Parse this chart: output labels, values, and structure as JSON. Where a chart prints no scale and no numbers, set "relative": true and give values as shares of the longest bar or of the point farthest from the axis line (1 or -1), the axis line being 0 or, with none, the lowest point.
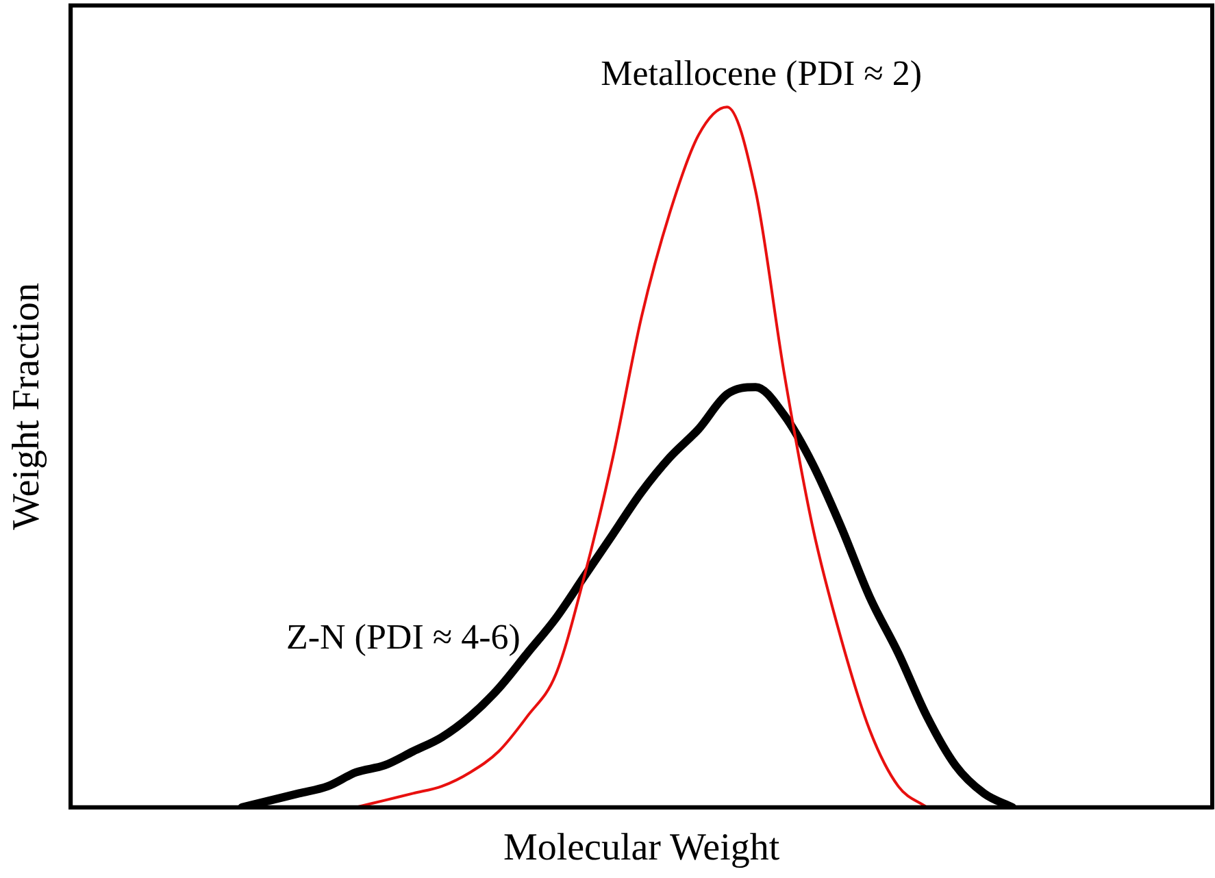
{
  "chart_data": {
    "type": "line",
    "relative": true,
    "xlabel": "Molecular Weight",
    "ylabel": "Weight Fraction",
    "legend": false,
    "grid": false,
    "marker": "none",
    "line_style": "solid",
    "categories": [
      null,
      null,
      null,
      null,
      null,
      null,
      null,
      null,
      null,
      null,
      null,
      null,
      null,
      null,
      null,
      null,
      null,
      null,
      null,
      null,
      null,
      null,
      null,
      null,
      null,
      null,
      null,
      null,
      null,
      null,
      null,
      null,
      null,
      null,
      null,
      null,
      null,
      null,
      null,
      null,
      null
    ],
    "series": [
      {
        "name": "Metallocene (PDI ≈ 2)",
        "color": "#e8100f",
        "values": [
          null,
          null,
          null,
          null,
          null,
          null,
          null,
          null,
          null,
          null,
          0,
          0.01,
          0.02,
          0.03,
          0.05,
          0.08,
          0.13,
          0.19,
          0.33,
          0.5,
          0.7,
          0.85,
          0.96,
          1,
          0.88,
          0.62,
          0.4,
          0.24,
          0.11,
          0.03,
          0,
          null,
          null,
          null,
          null,
          null,
          null,
          null,
          null,
          null,
          null
        ]
      },
      {
        "name": "Z-N (PDI ≈ 4-6)",
        "color": "#000000",
        "values": [
          null,
          null,
          null,
          null,
          null,
          null,
          0,
          0.01,
          0.02,
          0.03,
          0.05,
          0.06,
          0.08,
          0.1,
          0.13,
          0.17,
          0.22,
          0.27,
          0.33,
          0.39,
          0.45,
          0.5,
          0.54,
          0.59,
          0.6,
          0.56,
          0.49,
          0.4,
          0.3,
          0.22,
          0.13,
          0.06,
          0.02,
          0,
          null,
          null,
          null,
          null,
          null,
          null,
          null
        ]
      }
    ]
  }
}
